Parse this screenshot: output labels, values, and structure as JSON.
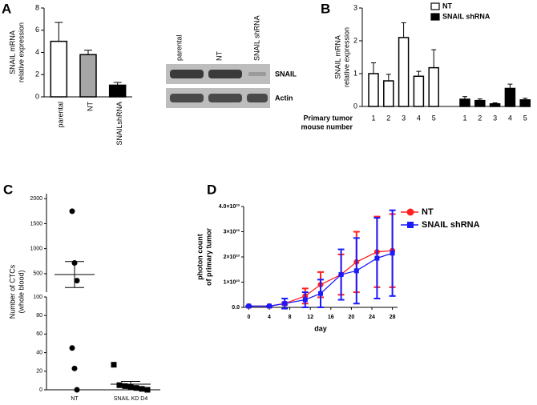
{
  "chart_data": [
    {
      "type": "bar",
      "label": "A",
      "ylabel": [
        "SNAIL mRNA",
        "relative expression"
      ],
      "categories": [
        "parental",
        "NT",
        "SNAILshRNA"
      ],
      "values": [
        5.0,
        3.8,
        1.05
      ],
      "errors": [
        1.7,
        0.4,
        0.25
      ],
      "colors": [
        "#ffffff",
        "#a6a6a6",
        "#000000"
      ],
      "ylim": [
        0,
        8
      ],
      "yticks": [
        0,
        2,
        4,
        6,
        8
      ]
    },
    {
      "type": "bar",
      "label": "B",
      "ylabel": [
        "SNAIL mRNA",
        "relative expression"
      ],
      "xlabel": [
        "Primary tumor",
        "mouse number"
      ],
      "categories": [
        "1",
        "2",
        "3",
        "4",
        "5",
        "1",
        "2",
        "3",
        "4",
        "5"
      ],
      "series": [
        {
          "name": "NT",
          "color": "#ffffff",
          "values": [
            1.0,
            0.78,
            2.1,
            0.92,
            1.18,
            null,
            null,
            null,
            null,
            null
          ],
          "errors": [
            0.33,
            0.2,
            0.45,
            0.15,
            0.55,
            null,
            null,
            null,
            null,
            null
          ]
        },
        {
          "name": "SNAIL shRNA",
          "color": "#000000",
          "values": [
            null,
            null,
            null,
            null,
            null,
            0.22,
            0.18,
            0.08,
            0.55,
            0.2
          ],
          "errors": [
            null,
            null,
            null,
            null,
            null,
            0.08,
            0.05,
            0.03,
            0.13,
            0.05
          ]
        }
      ],
      "ylim": [
        0,
        3
      ],
      "yticks": [
        0,
        1,
        2,
        3
      ],
      "legend": "upper right"
    },
    {
      "type": "dot-plot",
      "label": "C",
      "ylabel": [
        "Number of CTCs",
        "(whole blood)"
      ],
      "categories": [
        "NT",
        "SNAIL KD D4"
      ],
      "markers": [
        "circle",
        "square"
      ],
      "values": [
        [
          1750,
          715,
          360,
          45,
          23,
          0
        ],
        [
          27,
          5,
          4,
          3,
          2,
          1,
          0
        ]
      ],
      "means": [
        482,
        6
      ],
      "errors": [
        260,
        3
      ],
      "ylim": [
        0,
        100
      ],
      "yticks": [
        0,
        20,
        40,
        60,
        80,
        100
      ],
      "ylim_upper": [
        130,
        2100
      ],
      "yticks_upper": [
        500,
        1000,
        1500,
        2000
      ]
    },
    {
      "type": "line",
      "label": "D",
      "ylabel": [
        "photon count",
        "of primary tumor"
      ],
      "xlabel": "day",
      "x": [
        0,
        4,
        7,
        11,
        14,
        18,
        21,
        25,
        28
      ],
      "series": [
        {
          "name": "NT",
          "color": "#ff2020",
          "marker": "circle",
          "values": [
            5e+21,
            5e+21,
            1.5e+22,
            4.5e+22,
            9e+22,
            1.3e+23,
            1.8e+23,
            2.2e+23,
            2.25e+23
          ],
          "errors": [
            0,
            0,
            5e+21,
            3e+22,
            5e+22,
            8e+22,
            1.2e+23,
            1.4e+23,
            1.45e+23
          ]
        },
        {
          "name": "SNAIL shRNA",
          "color": "#1a1aff",
          "marker": "square",
          "values": [
            5e+21,
            5e+21,
            1.5e+22,
            3e+22,
            5.5e+22,
            1.3e+23,
            1.45e+23,
            1.95e+23,
            2.15e+23
          ],
          "errors": [
            0,
            0,
            2e+22,
            3e+22,
            5.5e+22,
            1e+23,
            1.3e+23,
            1.6e+23,
            1.7e+23
          ]
        }
      ],
      "xlim": [
        -1,
        29
      ],
      "xticks": [
        0,
        4,
        8,
        12,
        16,
        20,
        24,
        28
      ],
      "ylim": [
        0,
        4e+23
      ],
      "yticks": [
        {
          "value": 0,
          "label": "0.0"
        },
        {
          "value": 1e+23,
          "label": "1×10²³"
        },
        {
          "value": 2e+23,
          "label": "2×10²³"
        },
        {
          "value": 3e+23,
          "label": "3×10²³"
        },
        {
          "value": 4e+23,
          "label": "4.0×10²³"
        }
      ],
      "legend": "upper right"
    }
  ],
  "western_blot": {
    "lanes": [
      "parental",
      "NT",
      "SNAIL shRNA"
    ],
    "bands": [
      "SNAIL",
      "Actin"
    ]
  }
}
